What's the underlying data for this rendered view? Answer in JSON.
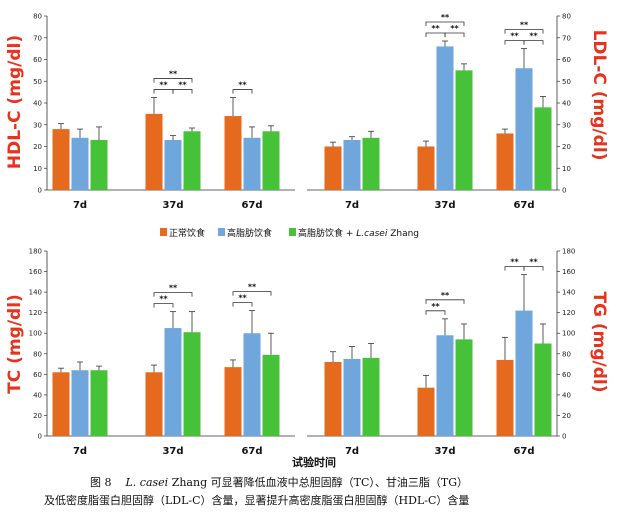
{
  "colors": {
    "normal": "#e56a1e",
    "high_fat": "#6fa6dc",
    "high_fat_lc": "#45c238",
    "axis_title": "#e8321d"
  },
  "legend": {
    "normal": "正常饮食",
    "high_fat": "高脂肪饮食",
    "high_fat_lc_prefix": "高脂肪饮食 + ",
    "high_fat_lc_species": "L.casei",
    "high_fat_lc_strain": " Zhang"
  },
  "x_axis_title": "试验时间",
  "caption": {
    "line1_prefix": "图 8",
    "line1_species": "L. casei",
    "line1_rest": " Zhang 可显著降低血液中总胆固醇（TC）、甘油三脂（TG）",
    "line2": "及低密度脂蛋白胆固醇（LDL-C）含量，显著提升高密度脂蛋白胆固醇（HDL-C）含量"
  },
  "chart_data": [
    {
      "id": "hdl",
      "type": "bar",
      "ylabel": "HDL-C (mg/dl)",
      "ylabel_side": "left",
      "ylim": [
        0,
        80
      ],
      "yticks": [
        0,
        10,
        20,
        30,
        40,
        50,
        60,
        70,
        80
      ],
      "categories": [
        "7d",
        "37d",
        "67d"
      ],
      "series": [
        {
          "name": "正常饮食",
          "values": [
            28,
            35,
            34
          ],
          "errors": [
            2.5,
            7.5,
            8.5
          ]
        },
        {
          "name": "高脂肪饮食",
          "values": [
            24,
            23,
            24
          ],
          "errors": [
            4,
            2,
            5
          ]
        },
        {
          "name": "高脂肪饮食 + L.casei Zhang",
          "values": [
            23,
            27,
            27
          ],
          "errors": [
            6,
            1.5,
            2.5
          ]
        }
      ],
      "annotations": [
        {
          "cat": 1,
          "from": 0,
          "to": 1,
          "label": "**",
          "level": 0
        },
        {
          "cat": 1,
          "from": 1,
          "to": 2,
          "label": "**",
          "level": 0
        },
        {
          "cat": 1,
          "from": 0,
          "to": 2,
          "label": "**",
          "level": 1
        },
        {
          "cat": 2,
          "from": 0,
          "to": 1,
          "label": "**",
          "level": 0
        }
      ]
    },
    {
      "id": "ldl",
      "type": "bar",
      "ylabel": "LDL-C (mg/dl)",
      "ylabel_side": "right",
      "ylim": [
        0,
        80
      ],
      "yticks": [
        0,
        10,
        20,
        30,
        40,
        50,
        60,
        70,
        80
      ],
      "categories": [
        "7d",
        "37d",
        "67d"
      ],
      "series": [
        {
          "name": "正常饮食",
          "values": [
            20,
            20,
            26
          ],
          "errors": [
            2,
            2.5,
            2
          ]
        },
        {
          "name": "高脂肪饮食",
          "values": [
            23,
            66,
            56
          ],
          "errors": [
            1.5,
            2.5,
            9
          ]
        },
        {
          "name": "高脂肪饮食 + L.casei Zhang",
          "values": [
            24,
            55,
            38
          ],
          "errors": [
            3,
            3,
            5
          ]
        }
      ],
      "annotations": [
        {
          "cat": 1,
          "from": 0,
          "to": 1,
          "label": "**",
          "level": 0
        },
        {
          "cat": 1,
          "from": 1,
          "to": 2,
          "label": "**",
          "level": 0
        },
        {
          "cat": 1,
          "from": 0,
          "to": 2,
          "label": "**",
          "level": 1
        },
        {
          "cat": 2,
          "from": 0,
          "to": 1,
          "label": "**",
          "level": 0
        },
        {
          "cat": 2,
          "from": 1,
          "to": 2,
          "label": "**",
          "level": 0
        },
        {
          "cat": 2,
          "from": 0,
          "to": 2,
          "label": "**",
          "level": 1
        }
      ]
    },
    {
      "id": "tc",
      "type": "bar",
      "ylabel": "TC (mg/dl)",
      "ylabel_side": "left",
      "ylim": [
        0,
        180
      ],
      "yticks": [
        0,
        20,
        40,
        60,
        80,
        100,
        120,
        140,
        160,
        180
      ],
      "categories": [
        "7d",
        "37d",
        "67d"
      ],
      "series": [
        {
          "name": "正常饮食",
          "values": [
            62,
            62,
            67
          ],
          "errors": [
            4,
            7,
            7
          ]
        },
        {
          "name": "高脂肪饮食",
          "values": [
            64,
            105,
            100
          ],
          "errors": [
            8,
            16,
            22
          ]
        },
        {
          "name": "高脂肪饮食 + L.casei Zhang",
          "values": [
            64,
            101,
            79
          ],
          "errors": [
            4,
            20,
            21
          ]
        }
      ],
      "annotations": [
        {
          "cat": 1,
          "from": 0,
          "to": 1,
          "label": "**",
          "level": 0
        },
        {
          "cat": 1,
          "from": 0,
          "to": 2,
          "label": "**",
          "level": 1
        },
        {
          "cat": 2,
          "from": 0,
          "to": 1,
          "label": "**",
          "level": 0
        },
        {
          "cat": 2,
          "from": 0,
          "to": 2,
          "label": "**",
          "level": 1
        }
      ]
    },
    {
      "id": "tg",
      "type": "bar",
      "ylabel": "TG (mg/dl)",
      "ylabel_side": "right",
      "ylim": [
        0,
        180
      ],
      "yticks": [
        0,
        20,
        40,
        60,
        80,
        100,
        120,
        140,
        160,
        180
      ],
      "categories": [
        "7d",
        "37d",
        "67d"
      ],
      "series": [
        {
          "name": "正常饮食",
          "values": [
            72,
            47,
            74
          ],
          "errors": [
            10,
            12,
            22
          ]
        },
        {
          "name": "高脂肪饮食",
          "values": [
            75,
            98,
            122
          ],
          "errors": [
            12,
            16,
            35
          ]
        },
        {
          "name": "高脂肪饮食 + L.casei Zhang",
          "values": [
            76,
            94,
            90
          ],
          "errors": [
            14,
            15,
            19
          ]
        }
      ],
      "annotations": [
        {
          "cat": 1,
          "from": 0,
          "to": 1,
          "label": "**",
          "level": 0
        },
        {
          "cat": 1,
          "from": 0,
          "to": 2,
          "label": "**",
          "level": 1
        },
        {
          "cat": 2,
          "from": 0,
          "to": 1,
          "label": "**",
          "level": 0
        },
        {
          "cat": 2,
          "from": 1,
          "to": 2,
          "label": "**",
          "level": 0
        }
      ]
    }
  ]
}
